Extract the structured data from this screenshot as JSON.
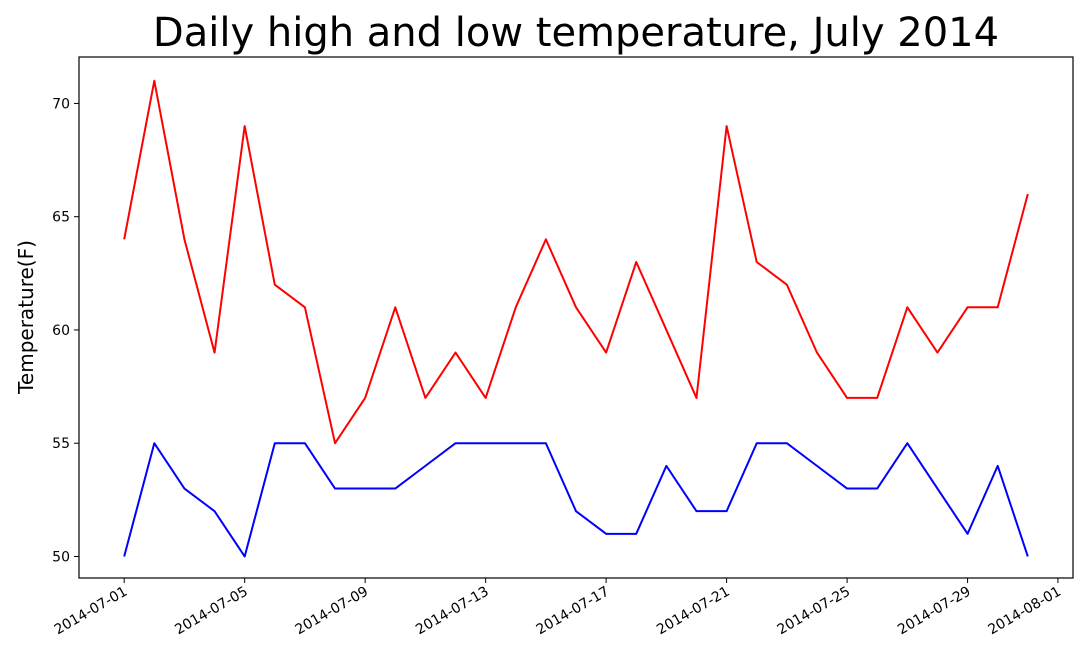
{
  "chart_data": {
    "type": "line",
    "title": "Daily high and low temperature, July 2014",
    "xlabel": "",
    "ylabel": "Temperature(F)",
    "x": [
      "2014-07-01",
      "2014-07-02",
      "2014-07-03",
      "2014-07-04",
      "2014-07-05",
      "2014-07-06",
      "2014-07-07",
      "2014-07-08",
      "2014-07-09",
      "2014-07-10",
      "2014-07-11",
      "2014-07-12",
      "2014-07-13",
      "2014-07-14",
      "2014-07-15",
      "2014-07-16",
      "2014-07-17",
      "2014-07-18",
      "2014-07-19",
      "2014-07-20",
      "2014-07-21",
      "2014-07-22",
      "2014-07-23",
      "2014-07-24",
      "2014-07-25",
      "2014-07-26",
      "2014-07-27",
      "2014-07-28",
      "2014-07-29",
      "2014-07-30",
      "2014-07-31"
    ],
    "series": [
      {
        "color": "#ff0000",
        "values": [
          64,
          71,
          64,
          59,
          69,
          62,
          61,
          55,
          57,
          61,
          57,
          59,
          57,
          61,
          64,
          61,
          59,
          63,
          60,
          57,
          69,
          63,
          62,
          59,
          57,
          57,
          61,
          59,
          61,
          61,
          66
        ]
      },
      {
        "color": "#0000ff",
        "values": [
          50,
          55,
          53,
          52,
          50,
          55,
          55,
          53,
          53,
          53,
          54,
          55,
          55,
          55,
          55,
          52,
          51,
          51,
          54,
          52,
          52,
          55,
          55,
          54,
          53,
          53,
          55,
          53,
          51,
          54,
          50
        ]
      }
    ],
    "xlim": [
      "2014-06-29.5",
      "2014-08-01.5"
    ],
    "ylim": [
      49.05,
      72.05
    ],
    "x_ticks": [
      "2014-07-01",
      "2014-07-05",
      "2014-07-09",
      "2014-07-13",
      "2014-07-17",
      "2014-07-21",
      "2014-07-25",
      "2014-07-29",
      "2014-08-01"
    ],
    "y_ticks": [
      50,
      55,
      60,
      65,
      70
    ],
    "grid": false,
    "legend": "none"
  }
}
